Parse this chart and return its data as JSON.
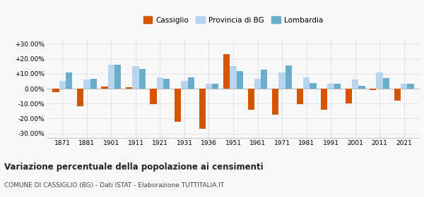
{
  "years": [
    1871,
    1881,
    1901,
    1911,
    1921,
    1931,
    1936,
    1951,
    1961,
    1971,
    1981,
    1991,
    2001,
    2011,
    2021
  ],
  "cassiglio": [
    -2.5,
    -12.0,
    1.5,
    1.0,
    -10.5,
    -22.0,
    -27.0,
    23.0,
    -14.0,
    -17.5,
    -10.5,
    -14.0,
    -10.0,
    -1.0,
    -8.0
  ],
  "provincia_bg": [
    5.0,
    6.0,
    16.0,
    15.0,
    7.5,
    5.0,
    3.5,
    15.0,
    6.5,
    11.0,
    7.5,
    3.5,
    6.0,
    11.0,
    3.5
  ],
  "lombardia": [
    11.0,
    6.5,
    16.0,
    13.0,
    6.5,
    7.5,
    3.5,
    12.0,
    12.5,
    15.5,
    4.0,
    3.5,
    2.0,
    7.0,
    3.5
  ],
  "color_cassiglio": "#d45500",
  "color_provincia": "#b8d4ee",
  "color_lombardia": "#6aaecc",
  "title": "Variazione percentuale della popolazione ai censimenti",
  "subtitle": "COMUNE DI CASSIGLIO (BG) - Dati ISTAT - Elaborazione TUTTITALIA.IT",
  "yticks": [
    -30,
    -20,
    -10,
    0,
    10,
    20,
    30
  ],
  "ylim": [
    -33,
    33
  ],
  "bar_width": 0.27,
  "bg_color": "#f8f8f8",
  "grid_color": "#ddddee"
}
